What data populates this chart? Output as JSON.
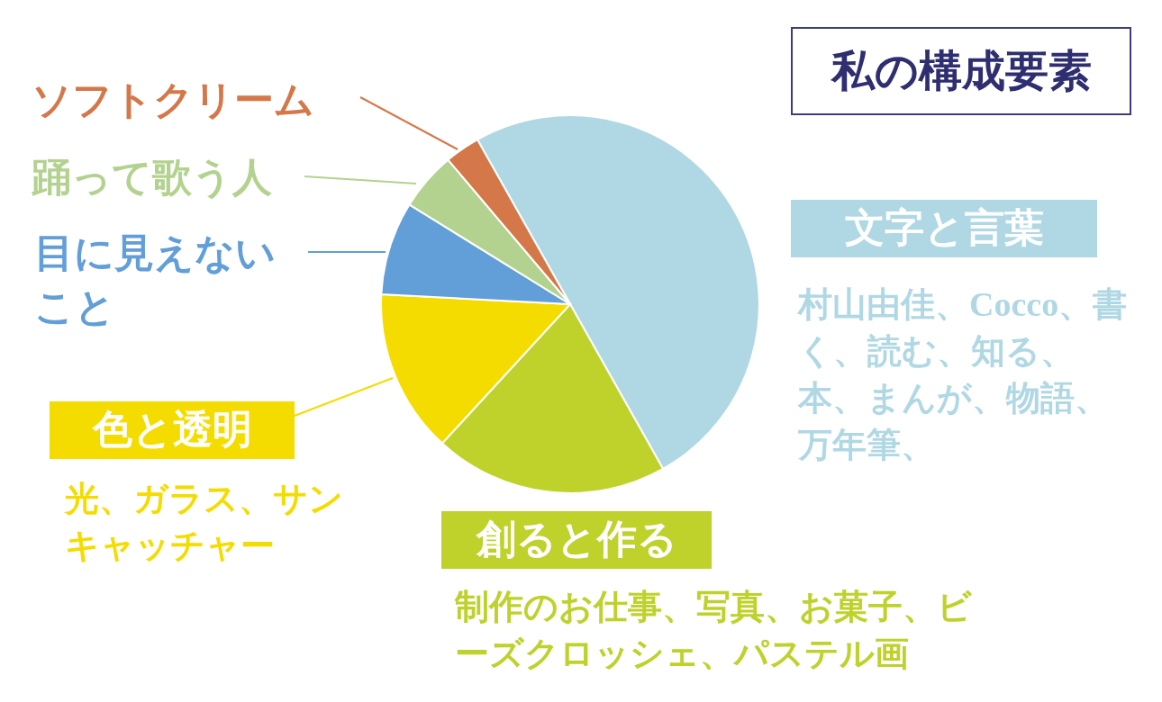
{
  "chart_data": {
    "type": "pie",
    "title": "私の構成要素",
    "categories": [
      "文字と言葉",
      "創ると作る",
      "色と透明",
      "目に見えないこと",
      "踊って歌う人",
      "ソフトクリーム"
    ],
    "values": [
      50,
      20,
      14,
      8,
      5,
      3
    ],
    "colors": [
      "#b0d8e4",
      "#bed22b",
      "#f5dc00",
      "#629fd8",
      "#b3d28f",
      "#d4784a"
    ],
    "annotations": [
      "村山由佳、Cocco、書く、読む、知る、本、まんが、物語、万年筆、",
      "制作のお仕事、写真、お菓子、ビーズクロッシェ、パステル画",
      "光、ガラス、サンキャッチャー"
    ],
    "legend": false
  }
}
